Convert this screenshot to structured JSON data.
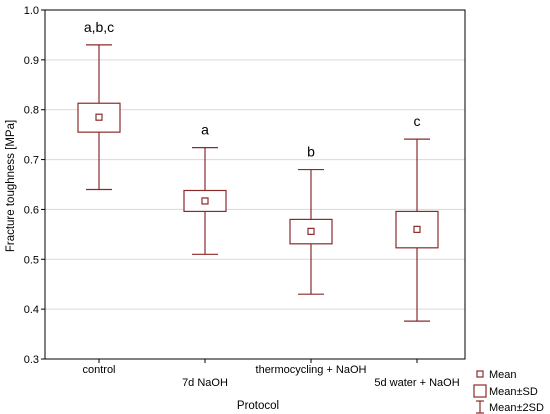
{
  "chart_data": {
    "type": "box",
    "xlabel": "Protocol",
    "ylabel": "Fracture toughness [MPa]",
    "ylim": [
      0.3,
      1.0
    ],
    "yticks": [
      "0.3",
      "0.4",
      "0.5",
      "0.6",
      "0.7",
      "0.8",
      "0.9",
      "1.0"
    ],
    "grid": true,
    "categories": [
      "control",
      "7d NaOH",
      "thermocycling + NaOH",
      "5d water + NaOH"
    ],
    "mean": [
      0.785,
      0.617,
      0.556,
      0.56
    ],
    "mean_minus_sd": [
      0.755,
      0.596,
      0.531,
      0.523
    ],
    "mean_plus_sd": [
      0.813,
      0.638,
      0.58,
      0.596
    ],
    "mean_minus_2sd": [
      0.64,
      0.51,
      0.43,
      0.376
    ],
    "mean_plus_2sd": [
      0.93,
      0.724,
      0.68,
      0.741
    ],
    "significance_labels": [
      "a,b,c",
      "a",
      "b",
      "c"
    ],
    "legend_position": "bottom-right",
    "legend": [
      {
        "symbol": "mean-marker",
        "label": "Mean"
      },
      {
        "symbol": "box",
        "label": "Mean±SD"
      },
      {
        "symbol": "whisker",
        "label": "Mean±2SD"
      }
    ],
    "colors": {
      "stroke": "#8b2a2a",
      "grid": "#d9d9d9",
      "axis": "#000000"
    }
  }
}
